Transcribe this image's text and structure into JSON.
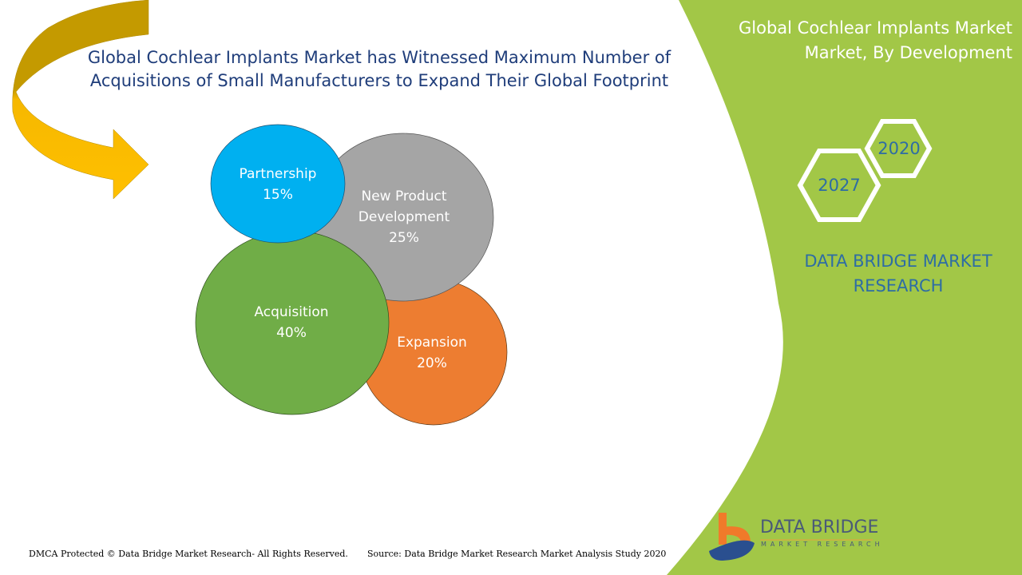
{
  "title": {
    "line1": "Global Cochlear Implants Market has Witnessed Maximum Number of",
    "line2": "Acquisitions of Small Manufacturers to Expand Their Global Footprint"
  },
  "side_panel": {
    "title_line1": "Global Cochlear Implants Market",
    "title_line2": "Market, By Development",
    "year_start": "2020",
    "year_end": "2027",
    "brand_line1": "DATA BRIDGE MARKET",
    "brand_line2": "RESEARCH",
    "color": "#a2c747"
  },
  "bubbles": [
    {
      "label_line1": "Partnership",
      "label_line2": "",
      "value": "15%",
      "color": "#00b0f0"
    },
    {
      "label_line1": "New Product",
      "label_line2": "Development",
      "value": "25%",
      "color": "#a5a5a5"
    },
    {
      "label_line1": "Acquisition",
      "label_line2": "",
      "value": "40%",
      "color": "#70ad47"
    },
    {
      "label_line1": "Expansion",
      "label_line2": "",
      "value": "20%",
      "color": "#ed7d31"
    }
  ],
  "logo": {
    "name": "DATA BRIDGE",
    "tagline": "MARKET RESEARCH"
  },
  "footer": {
    "copyright": "DMCA Protected © Data Bridge Market Research- All Rights Reserved.",
    "source": "Source: Data Bridge Market Research Market Analysis Study 2020"
  }
}
